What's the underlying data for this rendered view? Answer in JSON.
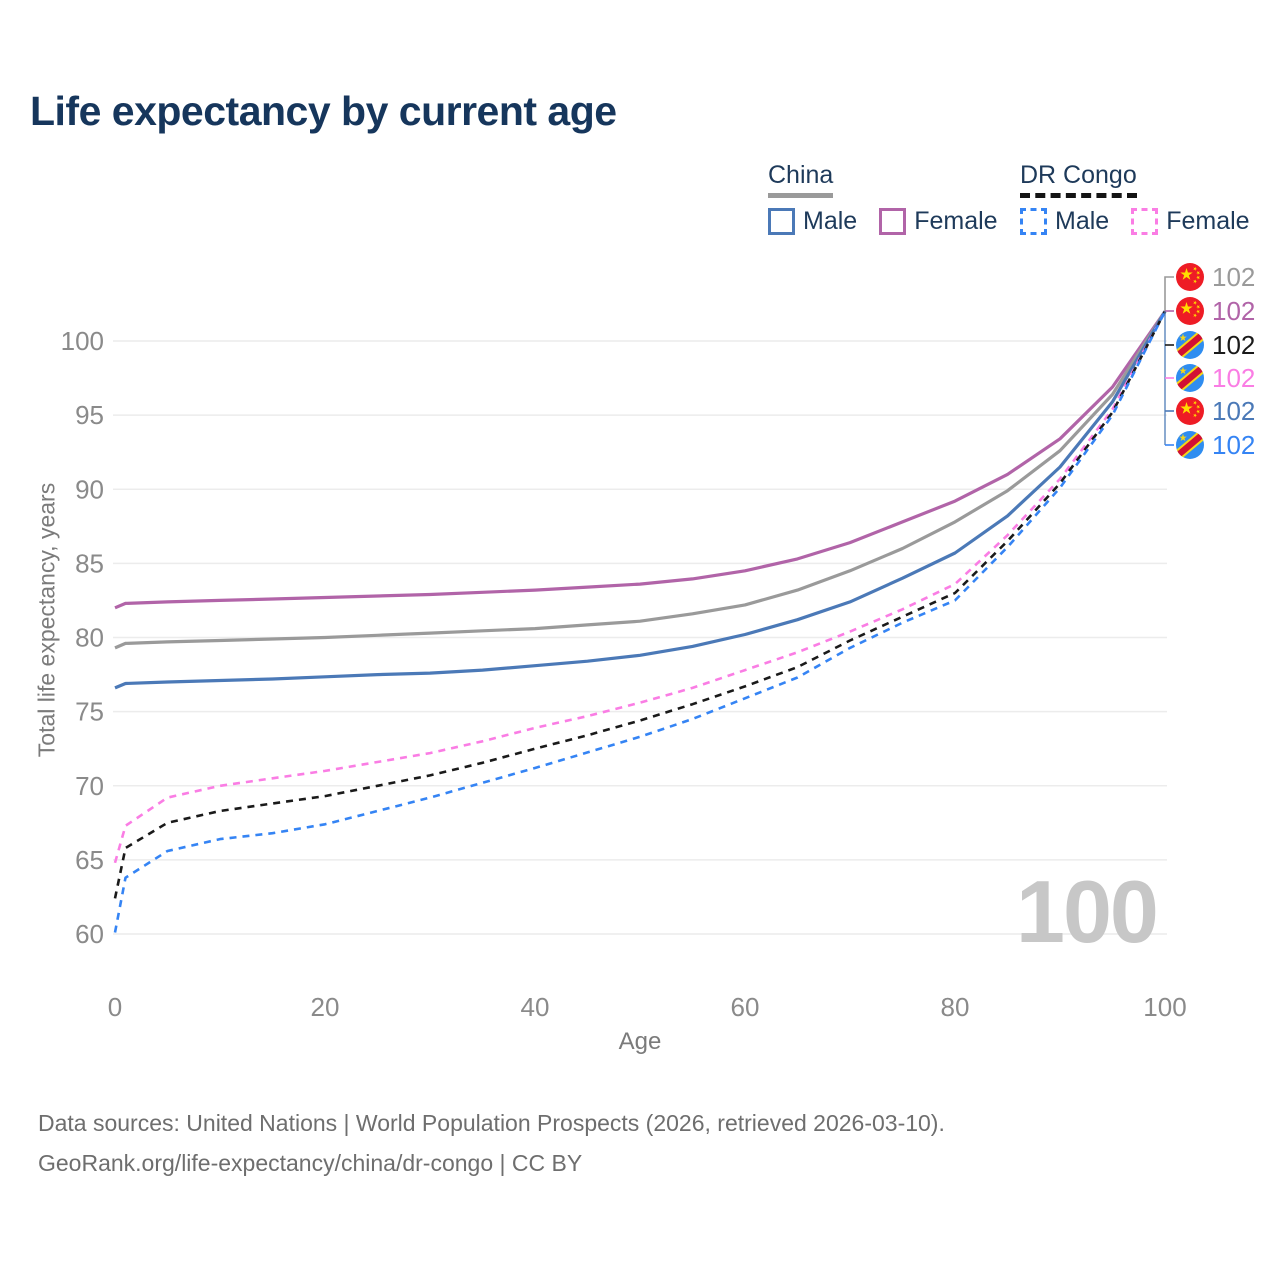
{
  "title": "Life expectancy by current age",
  "legend": {
    "china": {
      "label": "China",
      "male": "Male",
      "female": "Female"
    },
    "dr_congo": {
      "label": "DR Congo",
      "male": "Male",
      "female": "Female"
    }
  },
  "watermark": "100",
  "footer": {
    "line1": "Data sources: United Nations | World Population Prospects (2026, retrieved 2026-03-10).",
    "line2": "GeoRank.org/life-expectancy/china/dr-congo | CC BY"
  },
  "chart_data": {
    "type": "line",
    "title": "Life expectancy by current age",
    "xlabel": "Age",
    "ylabel": "Total life expectancy, years",
    "xlim": [
      0,
      100
    ],
    "ylim": [
      58,
      103
    ],
    "x_ticks": [
      0,
      20,
      40,
      60,
      80,
      100
    ],
    "y_ticks": [
      60,
      65,
      70,
      75,
      80,
      85,
      90,
      95,
      100
    ],
    "grid": "horizontal",
    "legend_position": "top-right",
    "ages": [
      0,
      1,
      5,
      10,
      15,
      20,
      25,
      30,
      35,
      40,
      45,
      50,
      55,
      60,
      65,
      70,
      75,
      80,
      85,
      90,
      95,
      100
    ],
    "series": [
      {
        "name": "China Female",
        "country": "China",
        "sex": "Female",
        "style": "solid",
        "color": "#b164a8",
        "values": [
          82.0,
          82.3,
          82.4,
          82.5,
          82.6,
          82.7,
          82.8,
          82.9,
          83.05,
          83.2,
          83.4,
          83.6,
          83.95,
          84.5,
          85.3,
          86.4,
          87.8,
          89.2,
          91.0,
          93.4,
          96.9,
          102.0
        ]
      },
      {
        "name": "China Total",
        "country": "China",
        "sex": "Both",
        "style": "solid",
        "color": "#9a9a9a",
        "values": [
          79.3,
          79.6,
          79.7,
          79.8,
          79.9,
          80.0,
          80.15,
          80.3,
          80.45,
          80.6,
          80.85,
          81.1,
          81.6,
          82.2,
          83.2,
          84.5,
          86.0,
          87.8,
          89.9,
          92.6,
          96.4,
          102.0
        ]
      },
      {
        "name": "China Male",
        "country": "China",
        "sex": "Male",
        "style": "solid",
        "color": "#4b79b7",
        "values": [
          76.6,
          76.9,
          77.0,
          77.1,
          77.2,
          77.35,
          77.5,
          77.6,
          77.8,
          78.1,
          78.4,
          78.8,
          79.4,
          80.2,
          81.2,
          82.4,
          84.0,
          85.7,
          88.2,
          91.5,
          95.9,
          102.0
        ]
      },
      {
        "name": "DR Congo Female",
        "country": "DR Congo",
        "sex": "Female",
        "style": "dashed",
        "color": "#fa7de4",
        "values": [
          64.8,
          67.3,
          69.2,
          70.0,
          70.5,
          71.0,
          71.6,
          72.2,
          73.0,
          73.9,
          74.7,
          75.6,
          76.6,
          77.8,
          79.0,
          80.4,
          81.9,
          83.6,
          86.9,
          90.7,
          95.4,
          102.0
        ]
      },
      {
        "name": "DR Congo Total",
        "country": "DR Congo",
        "sex": "Both",
        "style": "dashed",
        "color": "#1a1a1a",
        "values": [
          62.4,
          65.8,
          67.5,
          68.3,
          68.8,
          69.3,
          70.0,
          70.7,
          71.55,
          72.5,
          73.4,
          74.4,
          75.5,
          76.7,
          78.0,
          79.8,
          81.4,
          83.0,
          86.5,
          90.4,
          95.2,
          102.0
        ]
      },
      {
        "name": "DR Congo Male",
        "country": "DR Congo",
        "sex": "Male",
        "style": "dashed",
        "color": "#3584f4",
        "values": [
          60.1,
          63.8,
          65.6,
          66.4,
          66.8,
          67.4,
          68.3,
          69.2,
          70.2,
          71.2,
          72.25,
          73.3,
          74.5,
          75.9,
          77.3,
          79.3,
          81.0,
          82.5,
          86.1,
          90.1,
          95.0,
          102.0
        ]
      }
    ],
    "end_labels": [
      {
        "flag": "china",
        "series": "China Total",
        "value": "102",
        "color": "#9a9a9a"
      },
      {
        "flag": "china",
        "series": "China Female",
        "value": "102",
        "color": "#b164a8"
      },
      {
        "flag": "dr-congo",
        "series": "DR Congo Total",
        "value": "102",
        "color": "#1a1a1a"
      },
      {
        "flag": "dr-congo",
        "series": "DR Congo Female",
        "value": "102",
        "color": "#fa7de4"
      },
      {
        "flag": "china",
        "series": "China Male",
        "value": "102",
        "color": "#4b79b7"
      },
      {
        "flag": "dr-congo",
        "series": "DR Congo Male",
        "value": "102",
        "color": "#3584f4"
      }
    ]
  }
}
